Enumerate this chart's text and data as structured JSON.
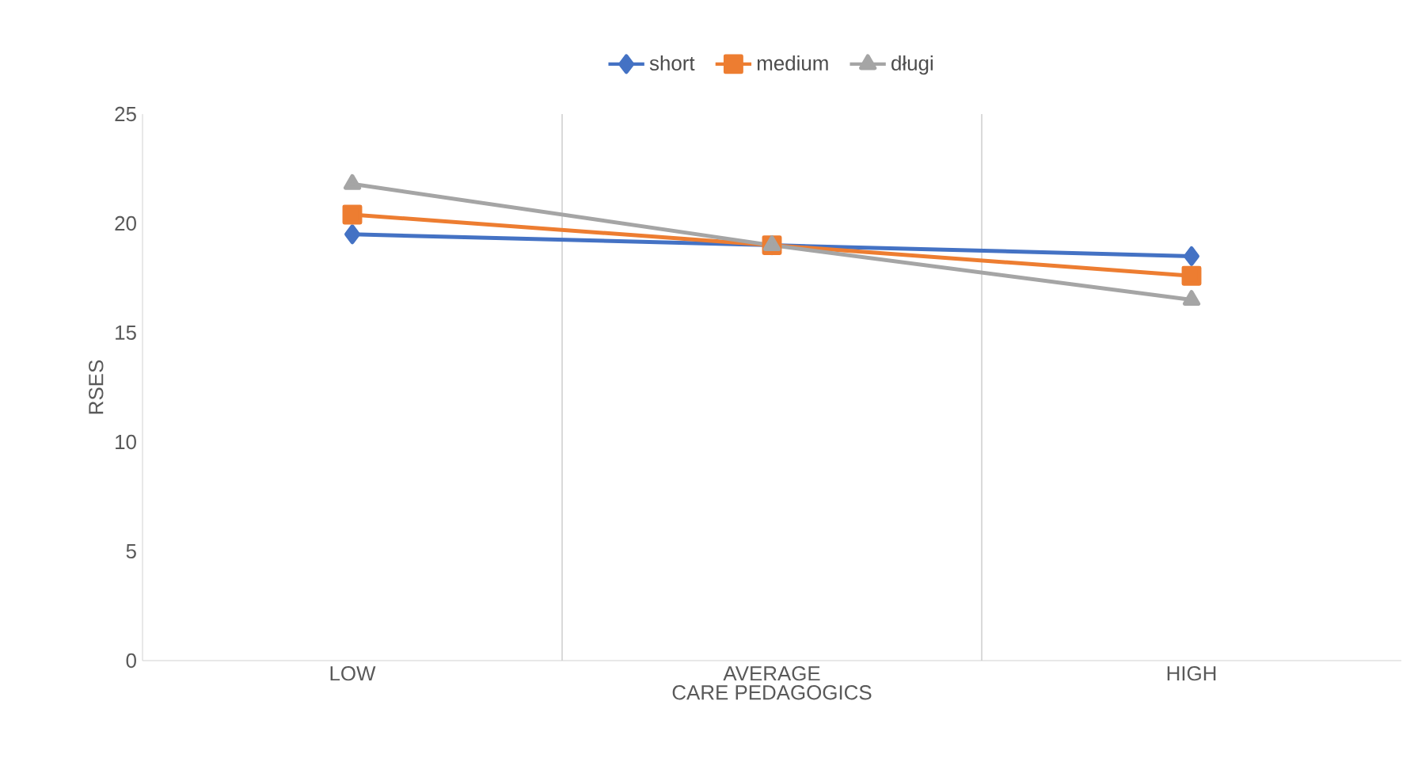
{
  "chart_data": {
    "type": "line",
    "xlabel": "CARE PEDAGOGICS",
    "ylabel": "RSES",
    "categories": [
      "LOW",
      "AVERAGE",
      "HIGH"
    ],
    "series": [
      {
        "name": "short",
        "color": "#4472c4",
        "marker": "diamond",
        "values": [
          19.5,
          19.0,
          18.5
        ]
      },
      {
        "name": "medium",
        "color": "#ed7d31",
        "marker": "square",
        "values": [
          20.4,
          19.0,
          17.6
        ]
      },
      {
        "name": "długi",
        "color": "#a5a5a5",
        "marker": "triangle",
        "values": [
          21.8,
          19.0,
          16.5
        ]
      }
    ],
    "ylim": [
      0,
      25
    ],
    "yticks": [
      0,
      5,
      10,
      15,
      20,
      25
    ],
    "grid": "x",
    "legend": "top"
  }
}
